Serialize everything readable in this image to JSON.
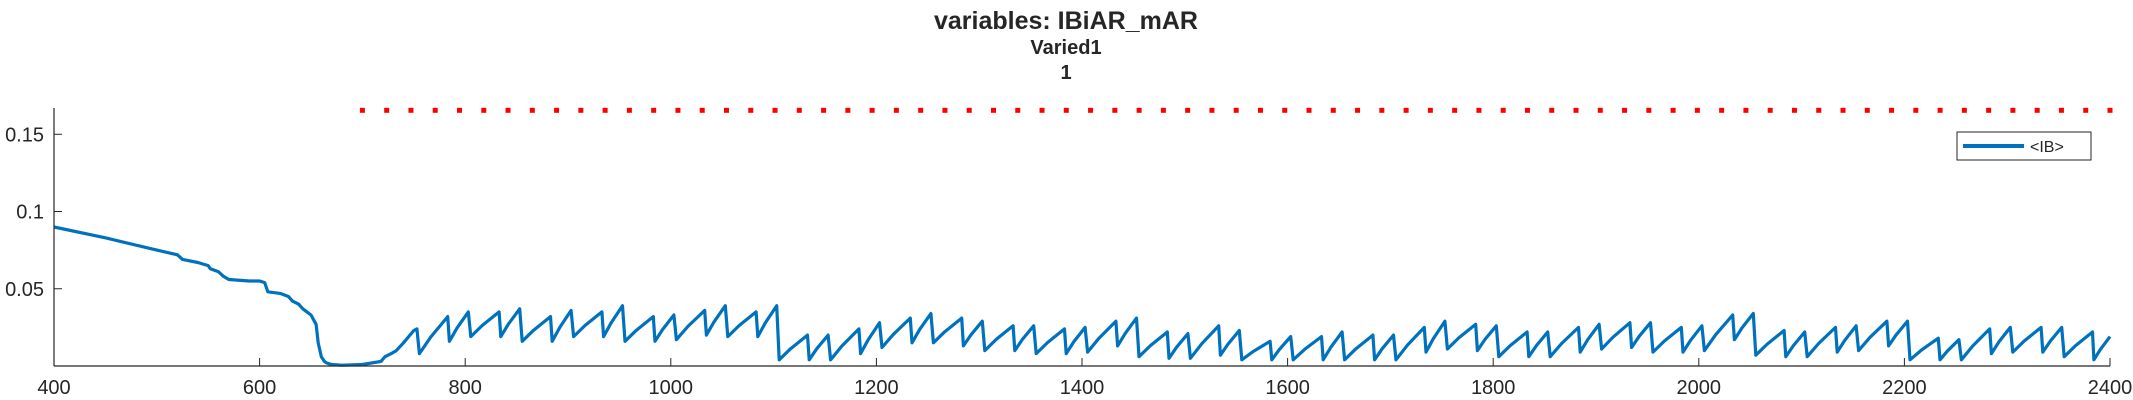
{
  "chart_data": {
    "type": "line",
    "title": "variables: IBiAR_mAR",
    "subtitle": "Varied1",
    "subtitle2": "1",
    "xlabel": "",
    "ylabel": "",
    "xlim": [
      400,
      2400
    ],
    "ylim": [
      0,
      0.167
    ],
    "x_ticks": [
      400,
      600,
      800,
      1000,
      1200,
      1400,
      1600,
      1800,
      2000,
      2200,
      2400
    ],
    "x_tick_labels": [
      "400",
      "600",
      "800",
      "1000",
      "1200",
      "1400",
      "1600",
      "1800",
      "2000",
      "2200",
      "2400"
    ],
    "y_ticks": [
      0.05,
      0.1,
      0.15
    ],
    "y_tick_labels": [
      "0.05",
      "0.1",
      "0.15"
    ],
    "grid": false,
    "legend": {
      "placement": "top-right",
      "entries": [
        "<IB>"
      ]
    },
    "colors": {
      "series": "#0072BD",
      "marker_row": "#FF0000",
      "axes": "#262626"
    },
    "series": [
      {
        "name": "<IB>",
        "trend": {
          "x": [
            400,
            450,
            500,
            520,
            525,
            540,
            550,
            552,
            560,
            565,
            570,
            590,
            600,
            605,
            608,
            620,
            628,
            632,
            638,
            642,
            650,
            655,
            657,
            660,
            663,
            665,
            670,
            680,
            700,
            718,
            722,
            728,
            733,
            740,
            745,
            750,
            753
          ],
          "y": [
            0.09,
            0.083,
            0.075,
            0.072,
            0.069,
            0.067,
            0.065,
            0.063,
            0.061,
            0.058,
            0.056,
            0.055,
            0.055,
            0.054,
            0.048,
            0.047,
            0.045,
            0.042,
            0.04,
            0.037,
            0.033,
            0.027,
            0.015,
            0.006,
            0.003,
            0.002,
            0.001,
            0.0005,
            0.001,
            0.003,
            0.006,
            0.008,
            0.01,
            0.015,
            0.019,
            0.023,
            0.024
          ]
        },
        "peaks": {
          "x": [
            753,
            783,
            803,
            833,
            853,
            883,
            903,
            933,
            953,
            983,
            1003,
            1033,
            1053,
            1083,
            1103,
            1133,
            1153,
            1183,
            1203,
            1233,
            1253,
            1283,
            1303,
            1333,
            1353,
            1383,
            1403,
            1433,
            1453,
            1483,
            1503,
            1533,
            1553,
            1583,
            1603,
            1633,
            1653,
            1683,
            1703,
            1733,
            1753,
            1783,
            1803,
            1833,
            1853,
            1883,
            1903,
            1933,
            1953,
            1983,
            2003,
            2033,
            2053,
            2083,
            2103,
            2133,
            2153,
            2183,
            2203,
            2233,
            2253,
            2283,
            2303,
            2333,
            2353,
            2383,
            2400
          ],
          "y": [
            0.024,
            0.032,
            0.035,
            0.035,
            0.037,
            0.032,
            0.036,
            0.035,
            0.039,
            0.032,
            0.033,
            0.036,
            0.039,
            0.035,
            0.039,
            0.02,
            0.02,
            0.024,
            0.028,
            0.031,
            0.034,
            0.031,
            0.029,
            0.026,
            0.026,
            0.024,
            0.025,
            0.029,
            0.031,
            0.022,
            0.021,
            0.026,
            0.023,
            0.016,
            0.019,
            0.019,
            0.022,
            0.02,
            0.02,
            0.025,
            0.029,
            0.027,
            0.026,
            0.022,
            0.022,
            0.025,
            0.027,
            0.028,
            0.028,
            0.025,
            0.026,
            0.033,
            0.034,
            0.023,
            0.022,
            0.025,
            0.026,
            0.029,
            0.029,
            0.018,
            0.017,
            0.024,
            0.025,
            0.025,
            0.025,
            0.022,
            0.019
          ]
        }
      },
      {
        "name": "",
        "style": "dotted",
        "x": [
          700,
          2400
        ],
        "y": [
          0.1655,
          0.1655
        ]
      }
    ]
  }
}
